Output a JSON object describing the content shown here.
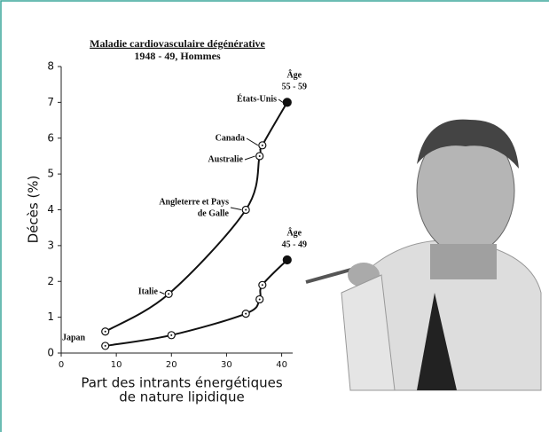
{
  "chart_data": {
    "type": "line",
    "title": "Maladie cardiovasculaire dégénérative",
    "subtitle": "1948 - 49, Hommes",
    "ylabel": "Décès (%)",
    "xlabel": [
      "Part des intrants énergétiques",
      "de nature lipidique"
    ],
    "xlim": [
      0,
      42
    ],
    "xticks": [
      0,
      10,
      20,
      30,
      40
    ],
    "ylim": [
      0,
      8
    ],
    "yticks": [
      0,
      1,
      2,
      3,
      4,
      5,
      6,
      7,
      8
    ],
    "age_word": "Âge",
    "point_labels": [
      "Japan",
      "Italie",
      [
        "Angleterre et Pays",
        "de Galle"
      ],
      "Australie",
      "Canada",
      "États-Unis"
    ],
    "series": [
      {
        "name": "55 - 59",
        "color": "#111111",
        "x": [
          8,
          19.5,
          33.5,
          36,
          36.5,
          41
        ],
        "values": [
          0.6,
          1.65,
          4.0,
          5.5,
          5.8,
          7.0
        ]
      },
      {
        "name": "45 - 49",
        "color": "#111111",
        "x": [
          8,
          20,
          33.5,
          36,
          36.5,
          41
        ],
        "values": [
          0.2,
          0.5,
          1.1,
          1.5,
          1.9,
          2.6
        ]
      }
    ]
  }
}
